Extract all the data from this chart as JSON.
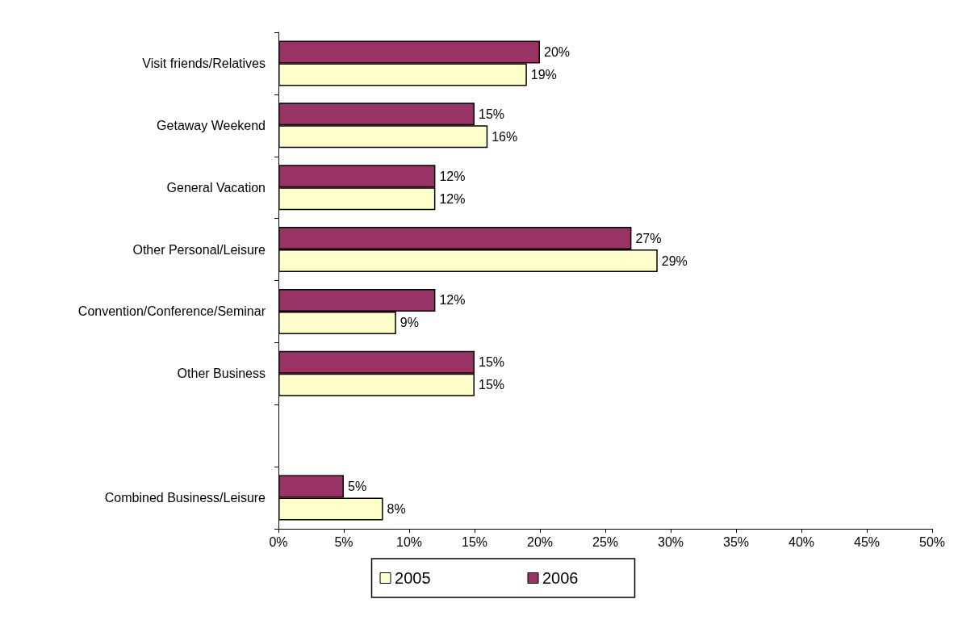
{
  "chart_data": {
    "type": "bar",
    "orientation": "horizontal",
    "categories": [
      "Visit friends/Relatives",
      "Getaway Weekend",
      "General Vacation",
      "Other Personal/Leisure",
      "Convention/Conference/Seminar",
      "Other Business",
      null,
      "Combined Business/Leisure"
    ],
    "series": [
      {
        "name": "2005",
        "color": "#ffffcc",
        "values": [
          19,
          16,
          12,
          29,
          9,
          15,
          null,
          8
        ],
        "value_labels": [
          "19%",
          "16%",
          "12%",
          "29%",
          "9%",
          "15%",
          null,
          "8%"
        ]
      },
      {
        "name": "2006",
        "color": "#993366",
        "values": [
          20,
          15,
          12,
          27,
          12,
          15,
          null,
          5
        ],
        "value_labels": [
          "20%",
          "15%",
          "12%",
          "27%",
          "12%",
          "15%",
          null,
          "5%"
        ]
      }
    ],
    "xlim": [
      0,
      50
    ],
    "xticks": [
      {
        "value": 0,
        "label": "0%"
      },
      {
        "value": 5,
        "label": "5%"
      },
      {
        "value": 10,
        "label": "10%"
      },
      {
        "value": 15,
        "label": "15%"
      },
      {
        "value": 20,
        "label": "20%"
      },
      {
        "value": 25,
        "label": "25%"
      },
      {
        "value": 30,
        "label": "30%"
      },
      {
        "value": 35,
        "label": "35%"
      },
      {
        "value": 40,
        "label": "40%"
      },
      {
        "value": 45,
        "label": "45%"
      },
      {
        "value": 50,
        "label": "50%"
      }
    ],
    "grid": false,
    "legend": "bottom"
  }
}
